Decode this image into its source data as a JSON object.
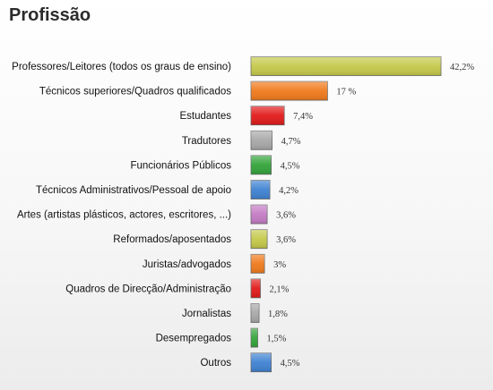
{
  "title": "Profissão",
  "chart_data": {
    "type": "bar",
    "orientation": "horizontal",
    "title": "Profissão",
    "categories": [
      "Professores/Leitores (todos os graus de ensino)",
      "Técnicos superiores/Quadros qualificados",
      "Estudantes",
      "Tradutores",
      "Funcionários Públicos",
      "Técnicos Administrativos/Pessoal de apoio",
      "Artes (artistas plásticos, actores, escritores, ...)",
      "Reformados/aposentados",
      "Juristas/advogados",
      "Quadros de Direcção/Administração",
      "Jornalistas",
      "Desempregados",
      "Outros"
    ],
    "values": [
      42.2,
      17,
      7.4,
      4.7,
      4.5,
      4.2,
      3.6,
      3.6,
      3,
      2.1,
      1.8,
      1.5,
      4.5
    ],
    "value_labels": [
      "42,2%",
      "17 %",
      "7,4%",
      "4,7%",
      "4,5%",
      "4,2%",
      "3,6%",
      "3,6%",
      "3%",
      "2,1%",
      "1,8%",
      "1,5%",
      "4,5%"
    ],
    "colors": [
      "#c5c94a",
      "#f07a1c",
      "#e21a1a",
      "#a8a8a8",
      "#33a43a",
      "#3f82d2",
      "#c47bc4",
      "#c5c94a",
      "#f07a1c",
      "#e21a1a",
      "#a8a8a8",
      "#33a43a",
      "#3f82d2"
    ],
    "xlim": [
      0,
      45
    ],
    "grid": false,
    "legend": "none"
  }
}
